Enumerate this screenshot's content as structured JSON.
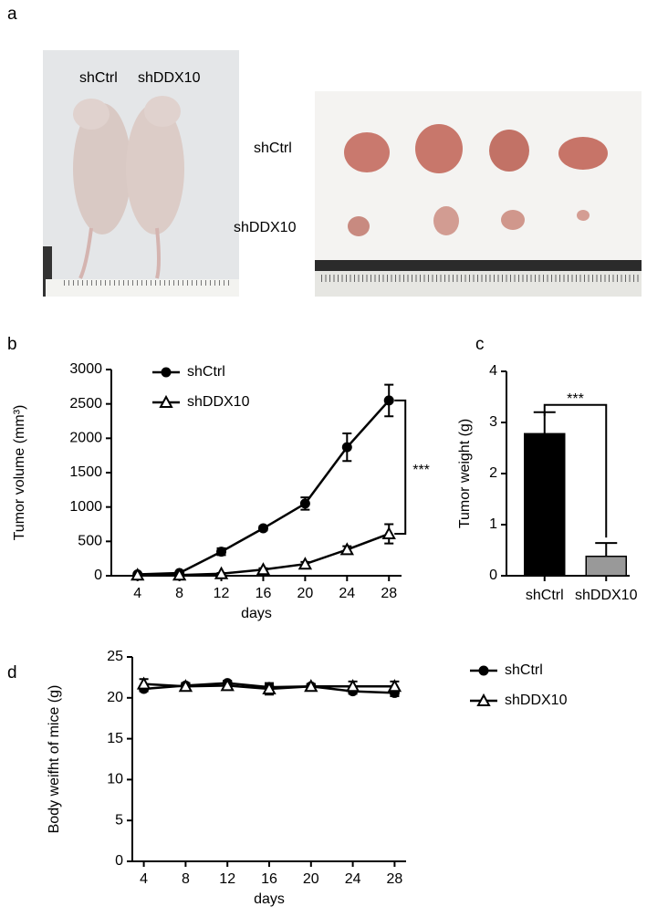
{
  "panel_labels": [
    "a",
    "b",
    "c",
    "d"
  ],
  "photo_labels": {
    "mice": [
      "shCtrl",
      "shDDX10"
    ],
    "tumors": [
      "shCtrl",
      "shDDX10"
    ]
  },
  "chart_data": [
    {
      "type": "line",
      "xlabel": "days",
      "ylabel": "Tumor volume (mm³)",
      "x": [
        4,
        8,
        12,
        16,
        20,
        24,
        28
      ],
      "xlim": [
        1.5,
        29.2
      ],
      "xticks": [
        4,
        8,
        12,
        16,
        20,
        24,
        28
      ],
      "ylim": [
        0,
        3000
      ],
      "yticks": [
        0,
        500,
        1000,
        1500,
        2000,
        2500,
        3000
      ],
      "legend": "upper left",
      "annotation": "***",
      "series": [
        {
          "name": "shCtrl",
          "color": "#000000",
          "marker": "circle",
          "values": [
            20,
            40,
            350,
            690,
            1050,
            1870,
            2550
          ],
          "errors": [
            10,
            10,
            50,
            30,
            90,
            200,
            230
          ]
        },
        {
          "name": "shDDX10",
          "color": "#000000",
          "marker": "triangle",
          "values": [
            10,
            10,
            30,
            90,
            170,
            380,
            610
          ],
          "errors": [
            5,
            5,
            10,
            20,
            30,
            50,
            140
          ]
        }
      ]
    },
    {
      "type": "bar",
      "ylabel": "Tumor  weight  (g)",
      "categories": [
        "shCtrl",
        "shDDX10"
      ],
      "values": [
        2.78,
        0.38
      ],
      "errors": [
        0.42,
        0.26
      ],
      "colors": [
        "#000000",
        "#999999"
      ],
      "ylim": [
        0,
        4
      ],
      "yticks": [
        0,
        1,
        2,
        3,
        4
      ],
      "annotation": "***"
    },
    {
      "type": "line",
      "xlabel": "days",
      "ylabel": "Body  weifht  of mice (g)",
      "x": [
        4,
        8,
        12,
        16,
        20,
        24,
        28
      ],
      "xlim": [
        2.9,
        29.1
      ],
      "xticks": [
        4,
        8,
        12,
        16,
        20,
        24,
        28
      ],
      "ylim": [
        0,
        25
      ],
      "yticks": [
        0,
        5,
        10,
        15,
        20,
        25
      ],
      "legend": "right",
      "series": [
        {
          "name": "shCtrl",
          "color": "#000000",
          "marker": "circle",
          "values": [
            21.1,
            21.5,
            21.8,
            21.3,
            21.4,
            20.8,
            20.6
          ],
          "errors": [
            0.3,
            0.3,
            0.3,
            0.4,
            0.3,
            0.3,
            0.4
          ]
        },
        {
          "name": "shDDX10",
          "color": "#000000",
          "marker": "triangle",
          "values": [
            21.7,
            21.4,
            21.5,
            21.1,
            21.4,
            21.4,
            21.4
          ],
          "errors": [
            0.6,
            0.4,
            0.3,
            0.7,
            0.3,
            0.6,
            0.6
          ]
        }
      ]
    }
  ]
}
